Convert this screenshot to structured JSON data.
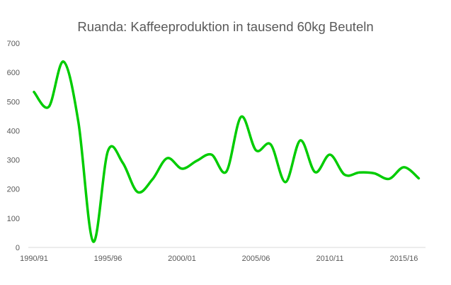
{
  "chart_data": {
    "type": "line",
    "title": "Ruanda: Kaffeeproduktion in tausend 60kg Beuteln",
    "xlabel": "",
    "ylabel": "",
    "ylim": [
      0,
      700
    ],
    "yticks": [
      0,
      100,
      200,
      300,
      400,
      500,
      600,
      700
    ],
    "grid": false,
    "legend": null,
    "smoothed": true,
    "line_color": "#00CC00",
    "x_tick_labels": [
      "1990/91",
      "1995/96",
      "2000/01",
      "2005/06",
      "2010/11",
      "2015/16"
    ],
    "categories": [
      "1990/91",
      "1991/92",
      "1992/93",
      "1993/94",
      "1994/95",
      "1995/96",
      "1996/97",
      "1997/98",
      "1998/99",
      "1999/00",
      "2000/01",
      "2001/02",
      "2002/03",
      "2003/04",
      "2004/05",
      "2005/06",
      "2006/07",
      "2007/08",
      "2008/09",
      "2009/10",
      "2010/11",
      "2011/12",
      "2012/13",
      "2013/14",
      "2014/15",
      "2015/16",
      "2016/17"
    ],
    "series": [
      {
        "name": "Kaffeeproduktion",
        "values": [
          533,
          482,
          637,
          430,
          20,
          331,
          290,
          190,
          233,
          306,
          270,
          297,
          318,
          260,
          448,
          333,
          353,
          224,
          367,
          258,
          318,
          249,
          257,
          254,
          235,
          275,
          237
        ]
      }
    ]
  }
}
